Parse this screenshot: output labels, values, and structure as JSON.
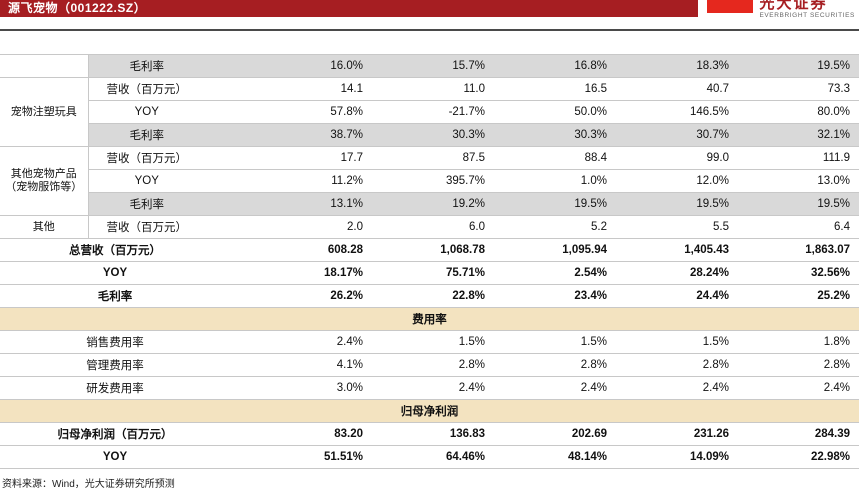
{
  "header": {
    "title": "源飞宠物（001222.SZ）",
    "logo_cn": "光大证券",
    "logo_en": "EVERBRIGHT SECURITIES"
  },
  "colors": {
    "brand_red": "#a61e22",
    "logo_red": "#e5281e",
    "row_shade_gray": "#d9d9d9",
    "section_tan": "#f3e3c0"
  },
  "table": {
    "rows": [
      {
        "type": "data",
        "shade": true,
        "group_empty": true,
        "metric": "毛利率",
        "values": [
          "16.0%",
          "15.7%",
          "16.8%",
          "18.3%",
          "19.5%"
        ]
      },
      {
        "type": "data",
        "group": {
          "label": "宠物注塑玩具",
          "span": 3
        },
        "metric": "营收（百万元）",
        "values": [
          "14.1",
          "11.0",
          "16.5",
          "40.7",
          "73.3"
        ]
      },
      {
        "type": "data",
        "metric": "YOY",
        "values": [
          "57.8%",
          "-21.7%",
          "50.0%",
          "146.5%",
          "80.0%"
        ]
      },
      {
        "type": "data",
        "shade": true,
        "metric": "毛利率",
        "values": [
          "38.7%",
          "30.3%",
          "30.3%",
          "30.7%",
          "32.1%"
        ]
      },
      {
        "type": "data",
        "group": {
          "label": "其他宠物产品\n（宠物服饰等）",
          "span": 3
        },
        "metric": "营收（百万元）",
        "values": [
          "17.7",
          "87.5",
          "88.4",
          "99.0",
          "111.9"
        ]
      },
      {
        "type": "data",
        "metric": "YOY",
        "values": [
          "11.2%",
          "395.7%",
          "1.0%",
          "12.0%",
          "13.0%"
        ]
      },
      {
        "type": "data",
        "shade": true,
        "metric": "毛利率",
        "values": [
          "13.1%",
          "19.2%",
          "19.5%",
          "19.5%",
          "19.5%"
        ]
      },
      {
        "type": "data",
        "group": {
          "label": "其他",
          "span": 1
        },
        "metric": "营收（百万元）",
        "values": [
          "2.0",
          "6.0",
          "5.2",
          "5.5",
          "6.4"
        ]
      },
      {
        "type": "summary",
        "bold": true,
        "label": "总营收（百万元）",
        "values": [
          "608.28",
          "1,068.78",
          "1,095.94",
          "1,405.43",
          "1,863.07"
        ]
      },
      {
        "type": "summary",
        "bold": true,
        "label": "YOY",
        "values": [
          "18.17%",
          "75.71%",
          "2.54%",
          "28.24%",
          "32.56%"
        ]
      },
      {
        "type": "summary",
        "bold": true,
        "label": "毛利率",
        "values": [
          "26.2%",
          "22.8%",
          "23.4%",
          "24.4%",
          "25.2%"
        ]
      },
      {
        "type": "section",
        "label": "费用率"
      },
      {
        "type": "summary",
        "label": "销售费用率",
        "values": [
          "2.4%",
          "1.5%",
          "1.5%",
          "1.5%",
          "1.8%"
        ]
      },
      {
        "type": "summary",
        "label": "管理费用率",
        "values": [
          "4.1%",
          "2.8%",
          "2.8%",
          "2.8%",
          "2.8%"
        ]
      },
      {
        "type": "summary",
        "label": "研发费用率",
        "values": [
          "3.0%",
          "2.4%",
          "2.4%",
          "2.4%",
          "2.4%"
        ]
      },
      {
        "type": "section",
        "label": "归母净利润"
      },
      {
        "type": "summary",
        "bold": true,
        "label": "归母净利润（百万元）",
        "values": [
          "83.20",
          "136.83",
          "202.69",
          "231.26",
          "284.39"
        ]
      },
      {
        "type": "summary",
        "bold": true,
        "label": "YOY",
        "values": [
          "51.51%",
          "64.46%",
          "48.14%",
          "14.09%",
          "22.98%"
        ]
      }
    ]
  },
  "footer": {
    "source": "资料来源：Wind，光大证券研究所预测"
  }
}
